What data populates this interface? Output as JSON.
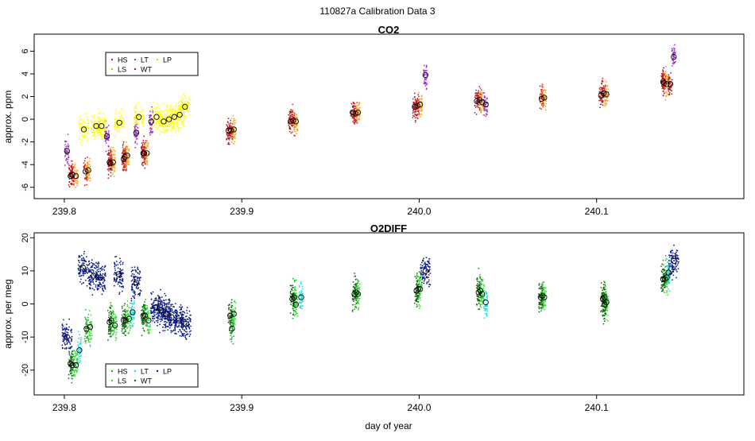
{
  "figure": {
    "title": "110827a   Calibration Data 3",
    "xlabel": "day of year"
  },
  "colors": {
    "HS": "#e8181e",
    "LS": "#f5a623",
    "LT": "#a030d0",
    "WT": "#b02020",
    "LP": "#ffff22",
    "O2_HS": "#22aa22",
    "O2_LS": "#33dd33",
    "O2_LT": "#22dddd",
    "O2_WT": "#116611",
    "O2_LP": "#0a1a8c",
    "O2_LT_blue": "#1a3fd8"
  },
  "chart_data": [
    {
      "type": "scatter",
      "title": "CO2",
      "ylabel": "approx. ppm",
      "xlim": [
        239.783,
        240.183
      ],
      "ylim": [
        -7.0,
        7.5
      ],
      "xticks": [
        239.8,
        239.9,
        240.0,
        240.1
      ],
      "xtick_labels": [
        "239.8",
        "239.9",
        "240.0",
        "240.1"
      ],
      "yticks": [
        -6,
        -4,
        -2,
        0,
        2,
        4,
        6
      ],
      "ytick_labels": [
        "-6",
        "-4",
        "-2",
        "0",
        "2",
        "4",
        "6"
      ],
      "legend": {
        "position": "top-left",
        "entries": [
          "HS",
          "LS",
          "LT",
          "WT",
          "LP"
        ]
      },
      "series": [
        {
          "name": "HS",
          "clusters": [
            [
              239.8045,
              -4.9
            ],
            [
              239.812,
              -4.6
            ],
            [
              239.826,
              -3.9
            ],
            [
              239.834,
              -3.3
            ],
            [
              239.845,
              -3.0
            ],
            [
              239.894,
              -1.0
            ],
            [
              239.929,
              -0.1
            ],
            [
              239.964,
              0.5
            ],
            [
              239.999,
              1.2
            ],
            [
              240.034,
              1.7
            ],
            [
              240.069,
              1.8
            ],
            [
              240.104,
              2.3
            ],
            [
              240.138,
              3.2
            ]
          ]
        },
        {
          "name": "LS",
          "clusters": [
            [
              239.8065,
              -5.0
            ],
            [
              239.8135,
              -4.5
            ],
            [
              239.8275,
              -3.8
            ],
            [
              239.8355,
              -3.2
            ],
            [
              239.8465,
              -3.0
            ],
            [
              239.8955,
              -0.9
            ],
            [
              239.9305,
              -0.2
            ],
            [
              239.9655,
              0.6
            ],
            [
              240.0005,
              1.3
            ],
            [
              240.0355,
              1.5
            ],
            [
              240.0705,
              1.9
            ],
            [
              240.1055,
              2.2
            ],
            [
              240.1395,
              3.1
            ]
          ]
        },
        {
          "name": "LT",
          "clusters": [
            [
              239.8015,
              -2.8
            ],
            [
              239.824,
              -1.5
            ],
            [
              239.8405,
              -1.2
            ],
            [
              239.849,
              -0.2
            ],
            [
              240.0035,
              3.9
            ],
            [
              240.0375,
              1.3
            ],
            [
              240.1435,
              5.5
            ]
          ]
        },
        {
          "name": "WT",
          "clusters": [
            [
              239.8035,
              -5.0
            ],
            [
              239.8255,
              -3.8
            ],
            [
              239.8335,
              -3.5
            ],
            [
              239.8445,
              -3.0
            ],
            [
              239.8925,
              -1.0
            ],
            [
              239.9275,
              -0.2
            ],
            [
              239.9625,
              0.6
            ],
            [
              239.9975,
              1.1
            ],
            [
              240.0325,
              1.6
            ],
            [
              240.1025,
              2.1
            ],
            [
              240.1375,
              3.3
            ],
            [
              240.1415,
              3.1
            ]
          ]
        },
        {
          "name": "LP",
          "clusters": [
            [
              239.811,
              -0.9
            ],
            [
              239.818,
              -0.6
            ],
            [
              239.821,
              -0.6
            ],
            [
              239.831,
              -0.3
            ],
            [
              239.842,
              0.2
            ],
            [
              239.852,
              0.2
            ],
            [
              239.856,
              -0.2
            ],
            [
              239.859,
              0.0
            ],
            [
              239.862,
              0.2
            ],
            [
              239.865,
              0.4
            ],
            [
              239.868,
              1.1
            ]
          ]
        }
      ]
    },
    {
      "type": "scatter",
      "title": "O2DIFF",
      "ylabel": "approx. per meg",
      "xlim": [
        239.783,
        240.183
      ],
      "ylim": [
        -27.5,
        21.5
      ],
      "xticks": [
        239.8,
        239.9,
        240.0,
        240.1
      ],
      "xtick_labels": [
        "239.8",
        "239.9",
        "240.0",
        "240.1"
      ],
      "yticks": [
        -20,
        -10,
        0,
        10,
        20
      ],
      "ytick_labels": [
        "-20",
        "-10",
        "0",
        "10",
        "20"
      ],
      "legend": {
        "position": "bottom-left",
        "entries": [
          "HS",
          "LS",
          "LT",
          "WT",
          "LP"
        ]
      },
      "series": [
        {
          "name": "HS",
          "clusters": [
            [
              239.8045,
              -18.5
            ],
            [
              239.8125,
              -7.5
            ],
            [
              239.8265,
              -5.0
            ],
            [
              239.8345,
              -5.0
            ],
            [
              239.8455,
              -3.5
            ],
            [
              239.8945,
              -7.5
            ],
            [
              239.9295,
              2.0
            ],
            [
              239.9645,
              3.5
            ],
            [
              239.9995,
              4.5
            ],
            [
              240.0345,
              4.0
            ],
            [
              240.0695,
              2.5
            ],
            [
              240.1045,
              2.0
            ],
            [
              240.1385,
              7.5
            ]
          ]
        },
        {
          "name": "LS",
          "clusters": [
            [
              239.8065,
              -18.5
            ],
            [
              239.8145,
              -7.0
            ],
            [
              239.8285,
              -6.5
            ],
            [
              239.8365,
              -4.5
            ],
            [
              239.8475,
              -5.0
            ],
            [
              239.8955,
              -3.0
            ],
            [
              239.9305,
              -0.2
            ],
            [
              239.9655,
              3.0
            ],
            [
              240.0005,
              4.5
            ],
            [
              240.0355,
              3.0
            ],
            [
              240.0705,
              2.0
            ],
            [
              240.1055,
              0.5
            ],
            [
              240.1395,
              8.0
            ]
          ]
        },
        {
          "name": "LT",
          "clusters": [
            [
              239.8085,
              -14.0
            ],
            [
              239.8385,
              -2.5
            ],
            [
              239.9335,
              2.0
            ],
            [
              240.0375,
              0.5
            ],
            [
              240.1405,
              9.5
            ]
          ]
        },
        {
          "name": "WT",
          "clusters": [
            [
              239.8035,
              -18.0
            ],
            [
              239.8255,
              -5.5
            ],
            [
              239.8335,
              -5.0
            ],
            [
              239.8445,
              -3.5
            ],
            [
              239.8935,
              -3.5
            ],
            [
              239.9285,
              1.5
            ],
            [
              239.9635,
              3.0
            ],
            [
              239.9985,
              4.0
            ],
            [
              240.0335,
              3.5
            ],
            [
              240.0685,
              2.0
            ],
            [
              240.1035,
              1.5
            ],
            [
              240.1045,
              -0.2
            ],
            [
              240.1375,
              7.5
            ]
          ]
        },
        {
          "name": "LP",
          "clusters": [
            [
              239.8015,
              -10.0
            ],
            [
              239.8105,
              11.0
            ],
            [
              239.8165,
              8.5
            ],
            [
              239.8205,
              8.0
            ],
            [
              239.8305,
              9.0
            ],
            [
              239.8405,
              6.5
            ],
            [
              239.8515,
              -1.0
            ],
            [
              239.8545,
              -2.0
            ],
            [
              239.8575,
              -3.0
            ],
            [
              239.8605,
              -4.0
            ],
            [
              239.8645,
              -5.0
            ],
            [
              239.8685,
              -6.0
            ],
            [
              240.0035,
              10.0
            ],
            [
              240.1435,
              13.0
            ]
          ]
        }
      ]
    }
  ]
}
